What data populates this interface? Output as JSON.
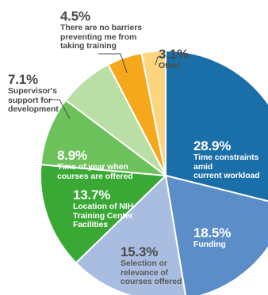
{
  "chart_data": {
    "type": "pie",
    "title": "",
    "colors_note": "slice colors listed in order",
    "slices": [
      {
        "value": 28.9,
        "percent_label": "28.9%",
        "label": "Time constraints amid\ncurrent workload",
        "color": "#1a6fa8"
      },
      {
        "value": 18.5,
        "percent_label": "18.5%",
        "label": "Funding",
        "color": "#5b8ec8"
      },
      {
        "value": 15.3,
        "percent_label": "15.3%",
        "label": "Selection or\nrelevance of\ncourses offered",
        "color": "#a8bde0"
      },
      {
        "value": 13.7,
        "percent_label": "13.7%",
        "label": "Location of NIH\nTraining Center\nFacilities",
        "color": "#3aa835"
      },
      {
        "value": 8.9,
        "percent_label": "8.9%",
        "label": "Time of year when\ncourses are offered",
        "color": "#6cc15a"
      },
      {
        "value": 7.1,
        "percent_label": "7.1%",
        "label": "Supervisor's\nsupport for\ndevelopment",
        "color": "#b9dea6"
      },
      {
        "value": 4.5,
        "percent_label": "4.5%",
        "label": "There are no barriers\npreventing me from\ntaking training",
        "color": "#f5a81c"
      },
      {
        "value": 3.1,
        "percent_label": "3.1%",
        "label": "Other",
        "color": "#fdd57e"
      }
    ]
  }
}
